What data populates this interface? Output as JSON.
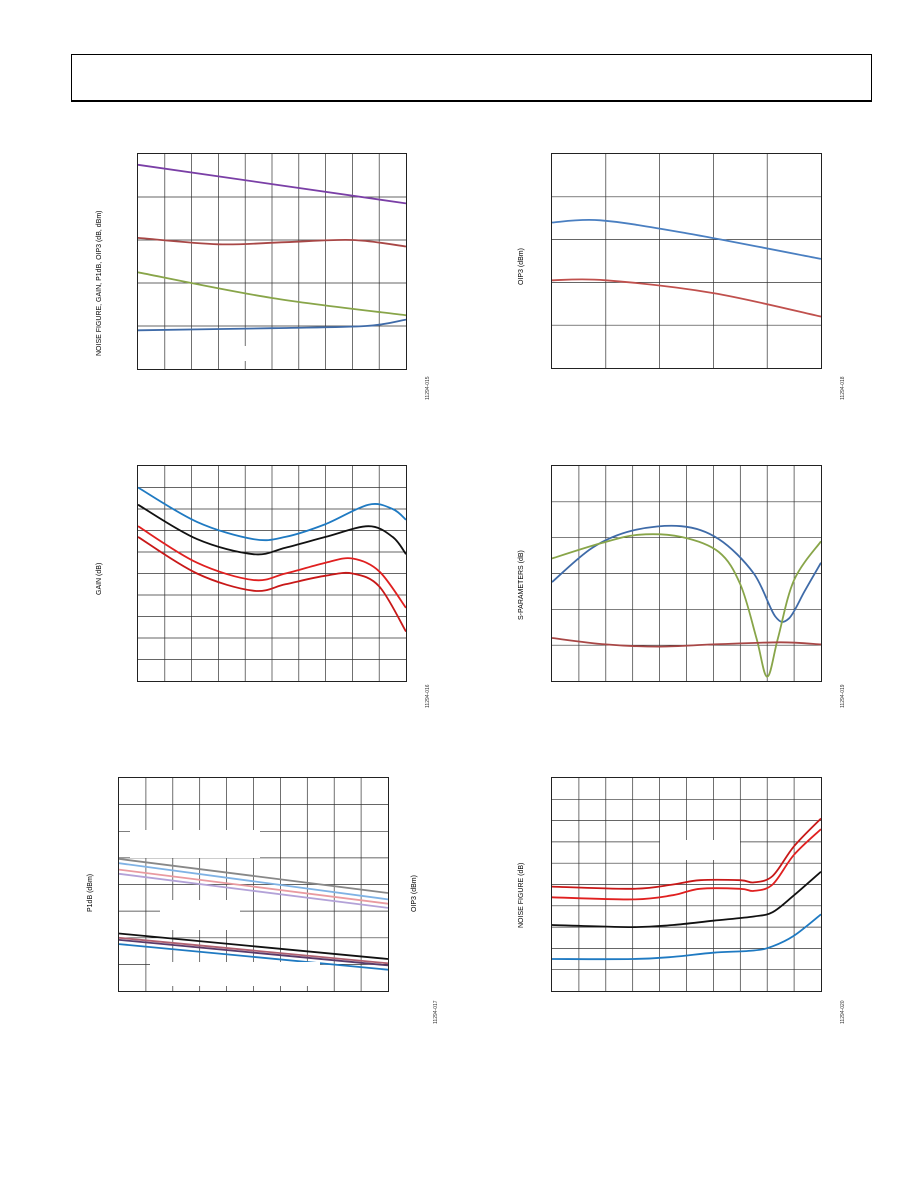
{
  "page": {
    "header_text": ""
  },
  "charts": [
    {
      "id": "fig15",
      "ylabel": "NOISE FIGURE, GAIN, P1dB, OIP3 (dB, dBm)",
      "figure_id": "11294-015",
      "grid": {
        "cols": 10,
        "rows": 5
      },
      "series": [
        {
          "color": "#7a3fa6",
          "points": [
            [
              0,
              0.95
            ],
            [
              1,
              0.77
            ]
          ]
        },
        {
          "color": "#a84746",
          "points": [
            [
              0,
              0.61
            ],
            [
              0.3,
              0.58
            ],
            [
              0.55,
              0.59
            ],
            [
              0.8,
              0.6
            ],
            [
              1,
              0.57
            ]
          ]
        },
        {
          "color": "#88a549",
          "points": [
            [
              0,
              0.45
            ],
            [
              0.5,
              0.33
            ],
            [
              1,
              0.25
            ]
          ]
        },
        {
          "color": "#3f6ba8",
          "points": [
            [
              0,
              0.18
            ],
            [
              0.5,
              0.19
            ],
            [
              0.85,
              0.2
            ],
            [
              1,
              0.23
            ]
          ]
        }
      ]
    },
    {
      "id": "fig18",
      "ylabel": "OIP3 (dBm)",
      "figure_id": "11294-018",
      "grid": {
        "cols": 5,
        "rows": 5
      },
      "series": [
        {
          "color": "#4a7fc1",
          "points": [
            [
              0,
              0.68
            ],
            [
              0.18,
              0.69
            ],
            [
              0.5,
              0.63
            ],
            [
              1,
              0.51
            ]
          ]
        },
        {
          "color": "#c0504d",
          "points": [
            [
              0,
              0.41
            ],
            [
              0.2,
              0.41
            ],
            [
              0.6,
              0.35
            ],
            [
              1,
              0.24
            ]
          ]
        }
      ]
    },
    {
      "id": "fig16",
      "ylabel": "GAIN (dB)",
      "figure_id": "11294-016",
      "grid": {
        "cols": 10,
        "rows": 10
      },
      "series": [
        {
          "color": "#1f7ac2",
          "points": [
            [
              0,
              0.9
            ],
            [
              0.22,
              0.74
            ],
            [
              0.43,
              0.66
            ],
            [
              0.55,
              0.67
            ],
            [
              0.7,
              0.73
            ],
            [
              0.86,
              0.82
            ],
            [
              0.95,
              0.8
            ],
            [
              1,
              0.75
            ]
          ]
        },
        {
          "color": "#111111",
          "points": [
            [
              0,
              0.82
            ],
            [
              0.22,
              0.66
            ],
            [
              0.43,
              0.59
            ],
            [
              0.55,
              0.62
            ],
            [
              0.7,
              0.67
            ],
            [
              0.86,
              0.72
            ],
            [
              0.95,
              0.67
            ],
            [
              1,
              0.59
            ]
          ]
        },
        {
          "color": "#e02020",
          "points": [
            [
              0,
              0.72
            ],
            [
              0.22,
              0.55
            ],
            [
              0.43,
              0.47
            ],
            [
              0.55,
              0.5
            ],
            [
              0.7,
              0.55
            ],
            [
              0.8,
              0.57
            ],
            [
              0.9,
              0.51
            ],
            [
              1,
              0.34
            ]
          ]
        },
        {
          "color": "#c81818",
          "points": [
            [
              0,
              0.67
            ],
            [
              0.22,
              0.5
            ],
            [
              0.43,
              0.42
            ],
            [
              0.55,
              0.45
            ],
            [
              0.7,
              0.49
            ],
            [
              0.8,
              0.5
            ],
            [
              0.9,
              0.44
            ],
            [
              1,
              0.23
            ]
          ]
        }
      ]
    },
    {
      "id": "fig19",
      "ylabel": "S-PARAMETERS (dB)",
      "figure_id": "11294-019",
      "grid": {
        "cols": 10,
        "rows": 6
      },
      "series": [
        {
          "color": "#3f6ba8",
          "points": [
            [
              0,
              0.46
            ],
            [
              0.15,
              0.62
            ],
            [
              0.3,
              0.7
            ],
            [
              0.48,
              0.72
            ],
            [
              0.62,
              0.66
            ],
            [
              0.75,
              0.5
            ],
            [
              0.83,
              0.3
            ],
            [
              0.88,
              0.29
            ],
            [
              0.94,
              0.42
            ],
            [
              1,
              0.55
            ]
          ]
        },
        {
          "color": "#88a549",
          "points": [
            [
              0,
              0.57
            ],
            [
              0.18,
              0.64
            ],
            [
              0.32,
              0.68
            ],
            [
              0.48,
              0.67
            ],
            [
              0.62,
              0.6
            ],
            [
              0.7,
              0.45
            ],
            [
              0.76,
              0.2
            ],
            [
              0.8,
              0.02
            ],
            [
              0.84,
              0.2
            ],
            [
              0.9,
              0.47
            ],
            [
              1,
              0.65
            ]
          ]
        },
        {
          "color": "#a84746",
          "points": [
            [
              0,
              0.2
            ],
            [
              0.2,
              0.17
            ],
            [
              0.4,
              0.16
            ],
            [
              0.6,
              0.17
            ],
            [
              0.85,
              0.18
            ],
            [
              1,
              0.17
            ]
          ]
        }
      ]
    },
    {
      "id": "fig17",
      "ylabel": "P1dB (dBm)",
      "ylabel_right": "OIP3 (dBm)",
      "figure_id": "11294-017",
      "grid": {
        "cols": 10,
        "rows": 8
      },
      "series": [
        {
          "color": "#888888",
          "points": [
            [
              0,
              0.62
            ],
            [
              1,
              0.46
            ]
          ]
        },
        {
          "color": "#7fb2e5",
          "points": [
            [
              0,
              0.6
            ],
            [
              1,
              0.43
            ]
          ]
        },
        {
          "color": "#e99aa0",
          "points": [
            [
              0,
              0.57
            ],
            [
              1,
              0.41
            ]
          ]
        },
        {
          "color": "#b3a2d8",
          "points": [
            [
              0,
              0.55
            ],
            [
              1,
              0.39
            ]
          ]
        },
        {
          "color": "#111111",
          "points": [
            [
              0,
              0.27
            ],
            [
              1,
              0.15
            ]
          ]
        },
        {
          "color": "#b06070",
          "points": [
            [
              0,
              0.25
            ],
            [
              1,
              0.13
            ]
          ]
        },
        {
          "color": "#5a3a6a",
          "points": [
            [
              0,
              0.24
            ],
            [
              1,
              0.12
            ]
          ]
        },
        {
          "color": "#1f7ac2",
          "points": [
            [
              0,
              0.22
            ],
            [
              1,
              0.1
            ]
          ]
        }
      ]
    },
    {
      "id": "fig20",
      "ylabel": "NOISE FIGURE (dB)",
      "figure_id": "11294-020",
      "grid": {
        "cols": 10,
        "rows": 10
      },
      "series": [
        {
          "color": "#c81818",
          "points": [
            [
              0,
              0.49
            ],
            [
              0.3,
              0.48
            ],
            [
              0.45,
              0.5
            ],
            [
              0.55,
              0.52
            ],
            [
              0.7,
              0.52
            ],
            [
              0.75,
              0.51
            ],
            [
              0.82,
              0.54
            ],
            [
              0.9,
              0.68
            ],
            [
              1,
              0.81
            ]
          ]
        },
        {
          "color": "#e02020",
          "points": [
            [
              0,
              0.44
            ],
            [
              0.3,
              0.43
            ],
            [
              0.45,
              0.45
            ],
            [
              0.55,
              0.48
            ],
            [
              0.7,
              0.48
            ],
            [
              0.75,
              0.47
            ],
            [
              0.82,
              0.5
            ],
            [
              0.9,
              0.64
            ],
            [
              1,
              0.76
            ]
          ]
        },
        {
          "color": "#111111",
          "points": [
            [
              0,
              0.31
            ],
            [
              0.3,
              0.3
            ],
            [
              0.45,
              0.31
            ],
            [
              0.6,
              0.33
            ],
            [
              0.75,
              0.35
            ],
            [
              0.82,
              0.37
            ],
            [
              0.9,
              0.45
            ],
            [
              1,
              0.56
            ]
          ]
        },
        {
          "color": "#1f7ac2",
          "points": [
            [
              0,
              0.15
            ],
            [
              0.3,
              0.15
            ],
            [
              0.45,
              0.16
            ],
            [
              0.6,
              0.18
            ],
            [
              0.75,
              0.19
            ],
            [
              0.82,
              0.21
            ],
            [
              0.9,
              0.26
            ],
            [
              1,
              0.36
            ]
          ]
        }
      ]
    }
  ]
}
